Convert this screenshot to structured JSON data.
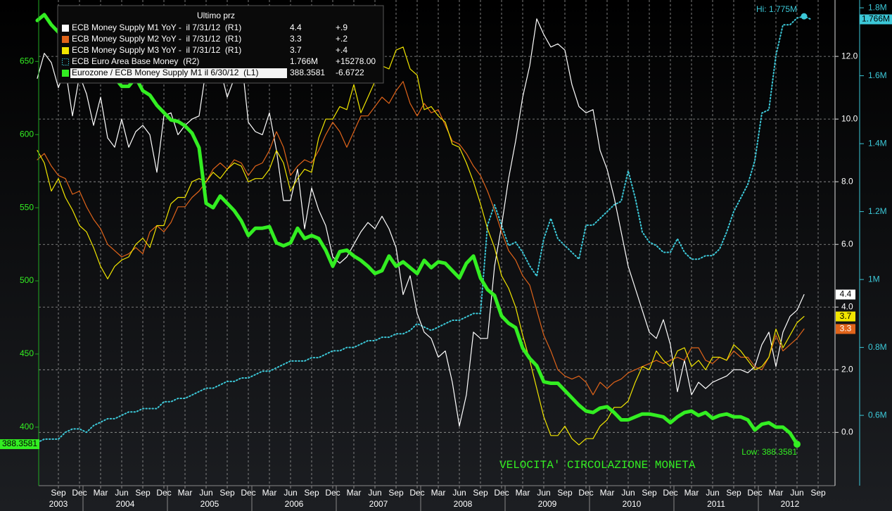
{
  "chart_data": {
    "type": "line",
    "annotation": "VELOCITA' CIRCOLAZIONE MONETA",
    "hi_label": "Hi: 1.775M",
    "low_label": "Low: 388.3581",
    "legend_header": "Ultimo prz",
    "categories": [
      "2003-06",
      "2003-07",
      "2003-08",
      "2003-09",
      "2003-10",
      "2003-11",
      "2003-12",
      "2004-01",
      "2004-02",
      "2004-03",
      "2004-04",
      "2004-05",
      "2004-06",
      "2004-07",
      "2004-08",
      "2004-09",
      "2004-10",
      "2004-11",
      "2004-12",
      "2005-01",
      "2005-02",
      "2005-03",
      "2005-04",
      "2005-05",
      "2005-06",
      "2005-07",
      "2005-08",
      "2005-09",
      "2005-10",
      "2005-11",
      "2005-12",
      "2006-01",
      "2006-02",
      "2006-03",
      "2006-04",
      "2006-05",
      "2006-06",
      "2006-07",
      "2006-08",
      "2006-09",
      "2006-10",
      "2006-11",
      "2006-12",
      "2007-01",
      "2007-02",
      "2007-03",
      "2007-04",
      "2007-05",
      "2007-06",
      "2007-07",
      "2007-08",
      "2007-09",
      "2007-10",
      "2007-11",
      "2007-12",
      "2008-01",
      "2008-02",
      "2008-03",
      "2008-04",
      "2008-05",
      "2008-06",
      "2008-07",
      "2008-08",
      "2008-09",
      "2008-10",
      "2008-11",
      "2008-12",
      "2009-01",
      "2009-02",
      "2009-03",
      "2009-04",
      "2009-05",
      "2009-06",
      "2009-07",
      "2009-08",
      "2009-09",
      "2009-10",
      "2009-11",
      "2009-12",
      "2010-01",
      "2010-02",
      "2010-03",
      "2010-04",
      "2010-05",
      "2010-06",
      "2010-07",
      "2010-08",
      "2010-09",
      "2010-10",
      "2010-11",
      "2010-12",
      "2011-01",
      "2011-02",
      "2011-03",
      "2011-04",
      "2011-05",
      "2011-06",
      "2011-07",
      "2011-08",
      "2011-09",
      "2011-10",
      "2011-11",
      "2011-12",
      "2012-01",
      "2012-02",
      "2012-03",
      "2012-04",
      "2012-05",
      "2012-06",
      "2012-07",
      "2012-08",
      "2012-09"
    ],
    "xticks": [
      {
        "value": "2003-09",
        "label": "Sep"
      },
      {
        "value": "2003-12",
        "label": "Dec"
      },
      {
        "value": "2004-03",
        "label": "Mar"
      },
      {
        "value": "2004-06",
        "label": "Jun"
      },
      {
        "value": "2004-09",
        "label": "Sep"
      },
      {
        "value": "2004-12",
        "label": "Dec"
      },
      {
        "value": "2005-03",
        "label": "Mar"
      },
      {
        "value": "2005-06",
        "label": "Jun"
      },
      {
        "value": "2005-09",
        "label": "Sep"
      },
      {
        "value": "2005-12",
        "label": "Dec"
      },
      {
        "value": "2006-03",
        "label": "Mar"
      },
      {
        "value": "2006-06",
        "label": "Jun"
      },
      {
        "value": "2006-09",
        "label": "Sep"
      },
      {
        "value": "2006-12",
        "label": "Dec"
      },
      {
        "value": "2007-03",
        "label": "Mar"
      },
      {
        "value": "2007-06",
        "label": "Jun"
      },
      {
        "value": "2007-09",
        "label": "Sep"
      },
      {
        "value": "2007-12",
        "label": "Dec"
      },
      {
        "value": "2008-03",
        "label": "Mar"
      },
      {
        "value": "2008-06",
        "label": "Jun"
      },
      {
        "value": "2008-09",
        "label": "Sep"
      },
      {
        "value": "2008-12",
        "label": "Dec"
      },
      {
        "value": "2009-03",
        "label": "Mar"
      },
      {
        "value": "2009-06",
        "label": "Jun"
      },
      {
        "value": "2009-09",
        "label": "Sep"
      },
      {
        "value": "2009-12",
        "label": "Dec"
      },
      {
        "value": "2010-03",
        "label": "Mar"
      },
      {
        "value": "2010-06",
        "label": "Jun"
      },
      {
        "value": "2010-09",
        "label": "Sep"
      },
      {
        "value": "2010-12",
        "label": "Dec"
      },
      {
        "value": "2011-03",
        "label": "Mar"
      },
      {
        "value": "2011-06",
        "label": "Jun"
      },
      {
        "value": "2011-09",
        "label": "Sep"
      },
      {
        "value": "2011-12",
        "label": "Dec"
      },
      {
        "value": "2012-03",
        "label": "Mar"
      },
      {
        "value": "2012-06",
        "label": "Jun"
      },
      {
        "value": "2012-09",
        "label": "Sep"
      }
    ],
    "years": [
      "2003",
      "2004",
      "2005",
      "2006",
      "2007",
      "2008",
      "2009",
      "2010",
      "2011",
      "2012"
    ],
    "ylim": [
      360,
      692
    ],
    "yticks": [
      400,
      450,
      500,
      550,
      600,
      650
    ],
    "y2lim": [
      -1.7,
      13.8
    ],
    "y2ticks": [
      {
        "value": 0,
        "label": "0.0"
      },
      {
        "value": 2,
        "label": "2.0"
      },
      {
        "value": 4,
        "label": "4.0"
      },
      {
        "value": 6,
        "label": "6.0"
      },
      {
        "value": 8,
        "label": "8.0"
      },
      {
        "value": 10,
        "label": "10.0"
      },
      {
        "value": 12,
        "label": "12.0"
      }
    ],
    "y3lim": [
      0.393,
      1.823
    ],
    "y3ticks": [
      {
        "value": 0.6,
        "label": "0.6M"
      },
      {
        "value": 0.8,
        "label": "0.8M"
      },
      {
        "value": 1,
        "label": "1M"
      },
      {
        "value": 1.2,
        "label": "1.2M"
      },
      {
        "value": 1.4,
        "label": "1.4M"
      },
      {
        "value": 1.6,
        "label": "1.6M"
      },
      {
        "value": 1.8,
        "label": "1.8M"
      }
    ],
    "grid": true,
    "series": [
      {
        "name": "ECB Money Supply M1 YoY -  il 7/31/12  (R1)",
        "color": "#ffffff",
        "axis": "y2",
        "last_label": "4.4",
        "change_label": "+.9",
        "values": [
          11.3,
          12.1,
          11.8,
          11.0,
          11.6,
          10.1,
          11.4,
          10.8,
          9.8,
          10.7,
          9.4,
          9.1,
          10.0,
          9.1,
          9.6,
          9.8,
          9.5,
          8.3,
          10.1,
          10.2,
          9.5,
          9.8,
          10.0,
          10.1,
          11.6,
          11.8,
          11.6,
          10.7,
          11.3,
          12.0,
          9.9,
          9.6,
          9.5,
          10.2,
          9.0,
          7.4,
          7.4,
          8.4,
          6.5,
          7.8,
          7.1,
          6.6,
          5.6,
          5.4,
          5.6,
          6.0,
          6.4,
          6.7,
          6.5,
          6.9,
          6.5,
          5.9,
          4.4,
          5.0,
          3.8,
          3.2,
          3.0,
          2.4,
          2.6,
          1.6,
          0.2,
          1.2,
          3.2,
          3.0,
          3.0,
          5.3,
          6.6,
          8.1,
          9.3,
          10.7,
          11.7,
          13.2,
          12.7,
          12.3,
          12.4,
          12.2,
          11.1,
          10.4,
          10.2,
          10.3,
          9.0,
          8.4,
          7.5,
          6.4,
          5.3,
          4.6,
          3.9,
          3.2,
          3.0,
          3.6,
          2.8,
          1.3,
          2.3,
          1.2,
          1.6,
          1.4,
          1.6,
          1.7,
          1.8,
          2.0,
          2.0,
          1.9,
          2.1,
          2.8,
          3.2,
          2.1,
          3.2,
          3.7,
          3.9,
          4.4,
          null,
          null
        ]
      },
      {
        "name": "ECB Money Supply M2 YoY -  il 7/31/12  (R1)",
        "color": "#e0641a",
        "axis": "y2",
        "last_label": "3.3",
        "change_label": "+.2",
        "values": [
          8.7,
          8.9,
          8.5,
          8.2,
          8.1,
          7.6,
          7.7,
          7.2,
          6.8,
          6.5,
          6.0,
          5.8,
          5.6,
          5.7,
          5.9,
          5.7,
          6.4,
          6.6,
          6.4,
          6.7,
          7.2,
          7.2,
          7.5,
          7.7,
          8.0,
          8.4,
          8.6,
          8.4,
          8.7,
          8.6,
          8.2,
          8.5,
          8.6,
          9.0,
          9.6,
          9.1,
          8.2,
          8.5,
          8.7,
          8.6,
          9.0,
          9.5,
          9.9,
          9.6,
          9.1,
          9.6,
          10.1,
          10.1,
          10.4,
          10.7,
          10.5,
          10.9,
          11.2,
          10.5,
          10.1,
          10.5,
          10.2,
          10.3,
          9.8,
          9.3,
          9.2,
          8.9,
          8.5,
          8.2,
          7.7,
          7.1,
          6.4,
          5.8,
          5.5,
          5.0,
          4.7,
          3.9,
          3.1,
          2.6,
          2.0,
          1.8,
          1.7,
          1.8,
          1.6,
          1.2,
          1.6,
          1.4,
          1.6,
          1.7,
          1.9,
          2.0,
          2.1,
          2.2,
          2.3,
          2.2,
          2.3,
          2.4,
          2.3,
          2.7,
          2.7,
          2.3,
          2.2,
          2.4,
          2.3,
          2.6,
          2.4,
          2.4,
          2.1,
          2.0,
          2.4,
          3.1,
          2.6,
          2.8,
          3.0,
          3.3,
          null,
          null
        ]
      },
      {
        "name": "ECB Money Supply M3 YoY -  il 7/31/12  (R1)",
        "color": "#f2e600",
        "axis": "y2",
        "last_label": "3.7",
        "change_label": "+.4",
        "values": [
          9.0,
          8.6,
          7.7,
          8.1,
          7.5,
          7.1,
          6.6,
          6.4,
          5.9,
          5.3,
          4.9,
          5.3,
          5.5,
          5.6,
          6.0,
          6.2,
          5.9,
          6.6,
          6.6,
          7.3,
          7.5,
          7.5,
          8.0,
          8.1,
          8.0,
          8.3,
          8.1,
          8.4,
          8.6,
          8.5,
          8.0,
          8.1,
          8.1,
          8.4,
          9.0,
          8.6,
          7.7,
          8.1,
          8.4,
          8.3,
          9.4,
          10.0,
          10.0,
          10.4,
          10.3,
          11.1,
          10.2,
          10.7,
          11.2,
          11.7,
          11.6,
          12.2,
          12.3,
          11.6,
          11.4,
          10.3,
          10.4,
          10.1,
          9.9,
          9.2,
          9.1,
          8.6,
          8.0,
          7.3,
          6.5,
          5.9,
          5.0,
          4.6,
          4.0,
          3.1,
          2.3,
          1.4,
          0.5,
          -0.1,
          -0.1,
          0.2,
          -0.2,
          -0.4,
          -0.2,
          -0.2,
          0.2,
          0.4,
          0.8,
          0.8,
          1.0,
          1.6,
          2.1,
          2.0,
          2.6,
          2.3,
          2.1,
          2.6,
          2.7,
          2.1,
          2.3,
          2.0,
          2.4,
          2.4,
          2.3,
          2.8,
          2.6,
          2.3,
          2.0,
          2.1,
          2.4,
          3.3,
          2.7,
          3.1,
          3.5,
          3.7,
          null,
          null
        ]
      },
      {
        "name": "ECB Euro Area Base Money  (R2)",
        "color": "#3cc8d8",
        "axis": "y3",
        "line_style": "dotted",
        "last_label": "1.766M",
        "change_label": "+15278.00",
        "values": [
          0.52,
          0.53,
          0.53,
          0.53,
          0.55,
          0.56,
          0.56,
          0.55,
          0.57,
          0.58,
          0.59,
          0.59,
          0.6,
          0.61,
          0.61,
          0.62,
          0.62,
          0.62,
          0.64,
          0.64,
          0.65,
          0.65,
          0.66,
          0.67,
          0.68,
          0.68,
          0.69,
          0.7,
          0.7,
          0.71,
          0.71,
          0.72,
          0.73,
          0.73,
          0.74,
          0.75,
          0.76,
          0.76,
          0.76,
          0.77,
          0.77,
          0.78,
          0.79,
          0.79,
          0.8,
          0.8,
          0.81,
          0.82,
          0.82,
          0.83,
          0.83,
          0.84,
          0.84,
          0.85,
          0.87,
          0.86,
          0.85,
          0.86,
          0.87,
          0.88,
          0.88,
          0.89,
          0.9,
          0.9,
          1.16,
          1.22,
          1.16,
          1.1,
          1.11,
          1.08,
          1.04,
          1.01,
          1.12,
          1.18,
          1.12,
          1.1,
          1.08,
          1.06,
          1.16,
          1.16,
          1.18,
          1.2,
          1.22,
          1.23,
          1.32,
          1.24,
          1.14,
          1.11,
          1.1,
          1.08,
          1.08,
          1.12,
          1.08,
          1.06,
          1.06,
          1.07,
          1.07,
          1.09,
          1.14,
          1.2,
          1.24,
          1.28,
          1.35,
          1.49,
          1.5,
          1.66,
          1.75,
          1.75,
          1.77,
          1.775,
          1.766,
          null
        ]
      },
      {
        "name": "Eurozone / ECB Money Supply M1 il 6/30/12  (L1)",
        "color": "#33ee22",
        "axis": "y",
        "last_label": "388.3581",
        "change_label": "-6.6722",
        "values": [
          678,
          682,
          675,
          670,
          663,
          655,
          654,
          644,
          655,
          647,
          644,
          639,
          633,
          633,
          639,
          630,
          627,
          620,
          615,
          610,
          609,
          606,
          601,
          591,
          553,
          550,
          558,
          553,
          548,
          541,
          531,
          536,
          536,
          537,
          526,
          524,
          526,
          536,
          529,
          531,
          529,
          521,
          510,
          520,
          521,
          517,
          514,
          510,
          505,
          507,
          517,
          510,
          513,
          509,
          505,
          514,
          509,
          513,
          512,
          507,
          502,
          512,
          517,
          502,
          494,
          490,
          476,
          471,
          468,
          454,
          447,
          442,
          431,
          430,
          430,
          425,
          420,
          415,
          411,
          410,
          413,
          414,
          410,
          405,
          405,
          407,
          409,
          409,
          408,
          407,
          403,
          407,
          410,
          411,
          408,
          410,
          406,
          408,
          409,
          407,
          407,
          405,
          398,
          402,
          403,
          400,
          400,
          396,
          388.3581,
          null,
          null,
          null
        ]
      }
    ]
  }
}
